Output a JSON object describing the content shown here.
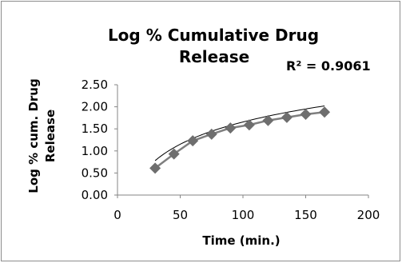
{
  "chart_data": {
    "type": "scatter",
    "title_lines": [
      "Log  % Cumulative Drug",
      "Release"
    ],
    "xlabel": "Time (min.)",
    "ylabel_lines": [
      "Log % cum. Drug",
      "Release"
    ],
    "annotation": "R² = 0.9061",
    "xlim": [
      0,
      200
    ],
    "ylim": [
      0,
      2.5
    ],
    "x_ticks": [
      0,
      50,
      100,
      150,
      200
    ],
    "y_ticks": [
      "0.00",
      "0.50",
      "1.00",
      "1.50",
      "2.00",
      "2.50"
    ],
    "grid": false,
    "legend": "none",
    "series": [
      {
        "x": [
          30,
          45,
          60,
          75,
          90,
          105,
          120,
          135,
          150,
          165
        ],
        "y": [
          0.61,
          0.93,
          1.23,
          1.38,
          1.52,
          1.59,
          1.69,
          1.76,
          1.83,
          1.88
        ]
      }
    ],
    "trendline": {
      "type": "logarithmic",
      "x_range": [
        30,
        165
      ],
      "y_start": 0.78,
      "y_end": 2.02
    },
    "colors": {
      "marker": "#6e6e6e",
      "line": "#7f7f7f",
      "trendline": "#000000",
      "border": "#8c8c8c"
    }
  }
}
